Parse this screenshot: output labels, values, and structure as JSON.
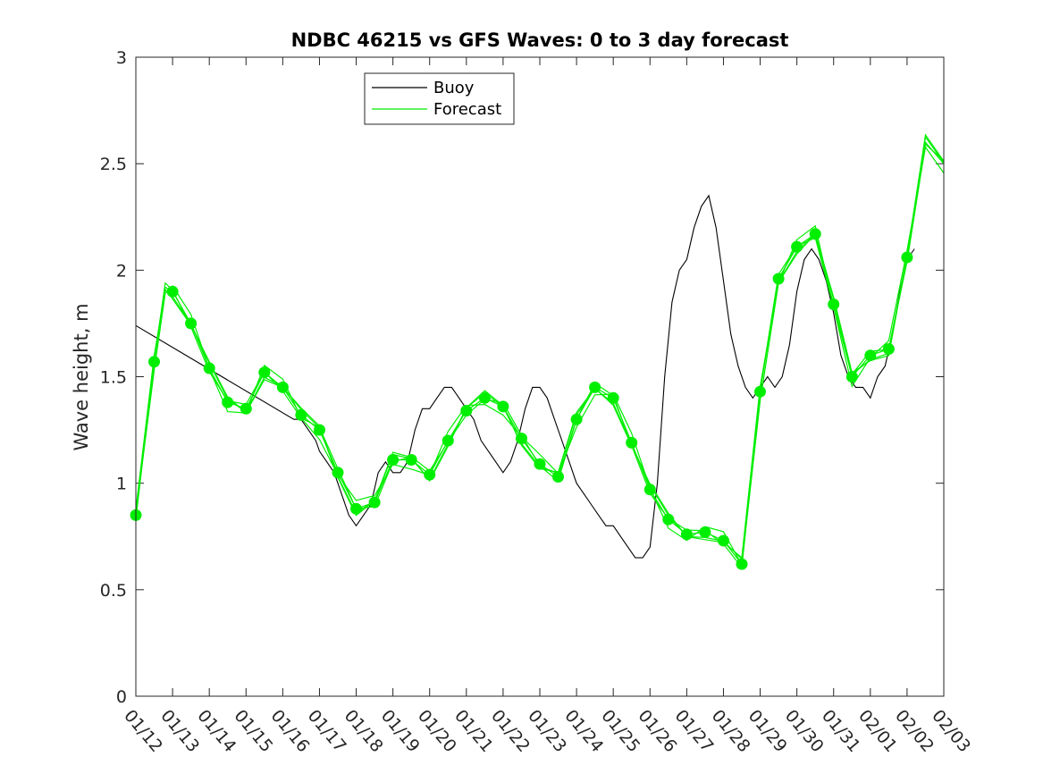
{
  "chart_data": {
    "type": "line",
    "title": "NDBC 46215 vs GFS Waves: 0 to 3 day forecast",
    "xlabel": "",
    "ylabel": "Wave height, m",
    "xlim": [
      0,
      22
    ],
    "ylim": [
      0,
      3
    ],
    "x_tick_labels": [
      "01/12",
      "01/13",
      "01/14",
      "01/15",
      "01/16",
      "01/17",
      "01/18",
      "01/19",
      "01/20",
      "01/21",
      "01/22",
      "01/23",
      "01/24",
      "01/25",
      "01/26",
      "01/27",
      "01/28",
      "01/29",
      "01/30",
      "01/31",
      "02/01",
      "02/02",
      "02/03"
    ],
    "y_ticks": [
      0,
      0.5,
      1,
      1.5,
      2,
      2.5,
      3
    ],
    "y_tick_labels": [
      "0",
      "0.5",
      "1",
      "1.5",
      "2",
      "2.5",
      "3"
    ],
    "legend": {
      "location": "top-left-center",
      "entries": [
        "Buoy",
        "Forecast"
      ]
    },
    "colors": {
      "buoy": "#000000",
      "forecast": "#00ee00",
      "markers": "#00ee00",
      "axes": "#262626"
    },
    "series": [
      {
        "name": "Buoy",
        "x": [
          0,
          4.3,
          4.5,
          4.7,
          4.9,
          5.0,
          5.2,
          5.4,
          5.6,
          5.8,
          6.0,
          6.2,
          6.4,
          6.6,
          6.8,
          7.0,
          7.2,
          7.4,
          7.6,
          7.8,
          8.0,
          8.2,
          8.4,
          8.6,
          8.8,
          9.0,
          9.2,
          9.4,
          9.6,
          9.8,
          10.0,
          10.2,
          10.4,
          10.6,
          10.8,
          11.0,
          11.2,
          11.4,
          11.6,
          11.8,
          12.0,
          12.2,
          12.4,
          12.6,
          12.8,
          13.0,
          13.2,
          13.4,
          13.6,
          13.8,
          14.0,
          14.2,
          14.4,
          14.6,
          14.8,
          15.0,
          15.2,
          15.4,
          15.6,
          15.8,
          16.0,
          16.2,
          16.4,
          16.6,
          16.8,
          17.0,
          17.2,
          17.4,
          17.6,
          17.8,
          18.0,
          18.2,
          18.4,
          18.6,
          18.8,
          19.0,
          19.2,
          19.4,
          19.6,
          19.8,
          20.0,
          20.2,
          20.4,
          20.6,
          20.8,
          21.0,
          21.2
        ],
        "values": [
          1.74,
          1.3,
          1.3,
          1.25,
          1.2,
          1.15,
          1.1,
          1.05,
          0.95,
          0.85,
          0.8,
          0.85,
          0.9,
          1.05,
          1.1,
          1.05,
          1.05,
          1.1,
          1.25,
          1.35,
          1.35,
          1.4,
          1.45,
          1.45,
          1.4,
          1.35,
          1.3,
          1.2,
          1.15,
          1.1,
          1.05,
          1.1,
          1.2,
          1.35,
          1.45,
          1.45,
          1.4,
          1.3,
          1.2,
          1.1,
          1.0,
          0.95,
          0.9,
          0.85,
          0.8,
          0.8,
          0.75,
          0.7,
          0.65,
          0.65,
          0.7,
          1.0,
          1.5,
          1.85,
          2.0,
          2.05,
          2.2,
          2.3,
          2.35,
          2.2,
          1.95,
          1.7,
          1.55,
          1.45,
          1.4,
          1.45,
          1.5,
          1.45,
          1.5,
          1.65,
          1.9,
          2.05,
          2.1,
          2.05,
          1.95,
          1.8,
          1.6,
          1.5,
          1.45,
          1.45,
          1.4,
          1.5,
          1.55,
          1.7,
          1.9,
          2.05,
          2.1
        ]
      },
      {
        "name": "Forecast",
        "x": [
          0,
          0.5,
          0.8,
          1.0,
          1.5,
          2.0,
          2.5,
          3.0,
          3.5,
          4.0,
          4.5,
          5.0,
          5.5,
          6.0,
          6.5,
          7.0,
          7.5,
          8.0,
          8.5,
          9.0,
          9.5,
          10.0,
          10.5,
          11.0,
          11.5,
          12.0,
          12.5,
          13.0,
          13.5,
          14.0,
          14.5,
          15.0,
          15.5,
          16.0,
          16.5,
          17.0,
          17.5,
          18.0,
          18.5,
          19.0,
          19.5,
          20.0,
          20.5,
          21.0,
          21.5,
          22.0
        ],
        "values": [
          0.85,
          1.57,
          1.92,
          1.9,
          1.75,
          1.54,
          1.38,
          1.35,
          1.52,
          1.45,
          1.32,
          1.25,
          1.05,
          0.88,
          0.91,
          1.11,
          1.11,
          1.04,
          1.2,
          1.34,
          1.4,
          1.36,
          1.21,
          1.09,
          1.03,
          1.3,
          1.45,
          1.4,
          1.19,
          0.97,
          0.83,
          0.76,
          0.77,
          0.73,
          0.62,
          1.43,
          1.96,
          2.11,
          2.17,
          1.84,
          1.5,
          1.6,
          1.63,
          2.06,
          2.6,
          2.5
        ]
      },
      {
        "name": "Forecast markers",
        "x": [
          0,
          0.5,
          1.0,
          1.5,
          2.0,
          2.5,
          3.0,
          3.5,
          4.0,
          4.5,
          5.0,
          5.5,
          6.0,
          6.5,
          7.0,
          7.5,
          8.0,
          8.5,
          9.0,
          9.5,
          10.0,
          10.5,
          11.0,
          11.5,
          12.0,
          12.5,
          13.0,
          13.5,
          14.0,
          14.5,
          15.0,
          15.5,
          16.0,
          16.5,
          17.0,
          17.5,
          18.0,
          18.5,
          19.0,
          19.5,
          20.0,
          20.5,
          21.0
        ],
        "values": [
          0.85,
          1.57,
          1.9,
          1.75,
          1.54,
          1.38,
          1.35,
          1.52,
          1.45,
          1.32,
          1.25,
          1.05,
          0.88,
          0.91,
          1.11,
          1.11,
          1.04,
          1.2,
          1.34,
          1.4,
          1.36,
          1.21,
          1.09,
          1.03,
          1.3,
          1.45,
          1.4,
          1.19,
          0.97,
          0.83,
          0.76,
          0.77,
          0.73,
          0.62,
          1.43,
          1.96,
          2.11,
          2.17,
          1.84,
          1.5,
          1.6,
          1.63,
          2.06
        ]
      }
    ]
  }
}
